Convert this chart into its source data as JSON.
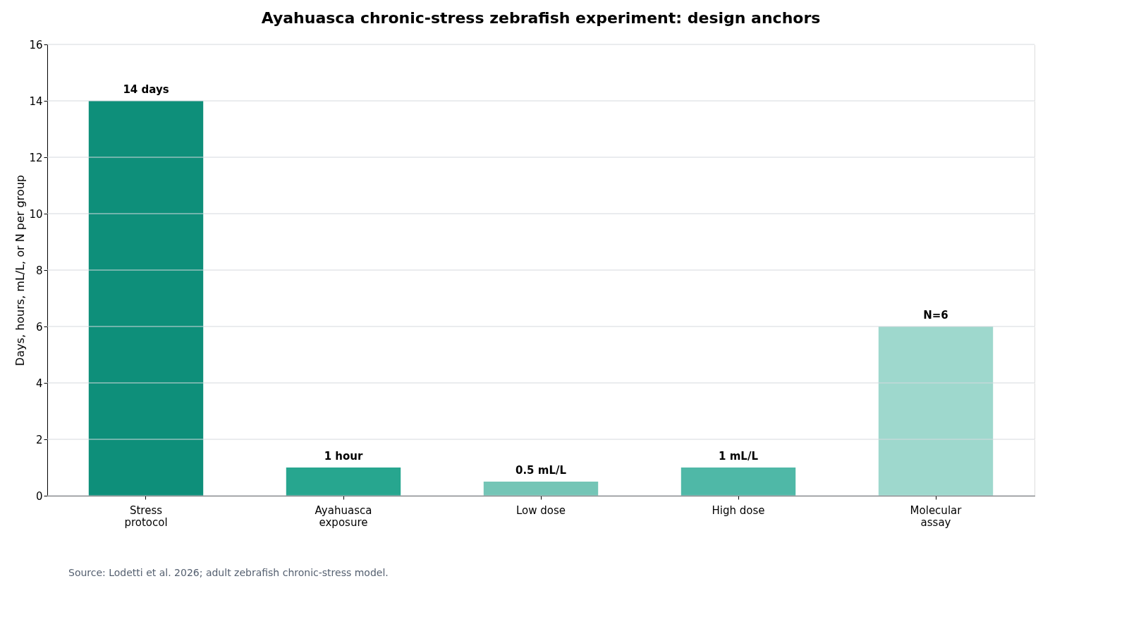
{
  "chart_data": {
    "type": "bar",
    "title": "Ayahuasca chronic-stress zebrafish experiment: design anchors",
    "ylabel": "Days, hours, mL/L, or N per group",
    "categories": [
      "Stress\nprotocol",
      "Ayahuasca\nexposure",
      "Low dose",
      "High dose",
      "Molecular\nassay"
    ],
    "values": [
      14,
      1,
      0.5,
      1,
      6
    ],
    "colors": [
      "#0e8f7a",
      "#27a68f",
      "#74c5b6",
      "#4fb8a7",
      "#9ed8cd"
    ],
    "value_labels": [
      "14 days",
      "1 hour",
      "0.5 mL/L",
      "1 mL/L",
      "N=6"
    ],
    "ylim": [
      0,
      16
    ],
    "yticks": [
      0,
      2,
      4,
      6,
      8,
      10,
      12,
      14,
      16
    ],
    "grid": "y",
    "annotations": [
      "Source: Lodetti et al. 2026; adult zebrafish chronic-stress model."
    ]
  }
}
